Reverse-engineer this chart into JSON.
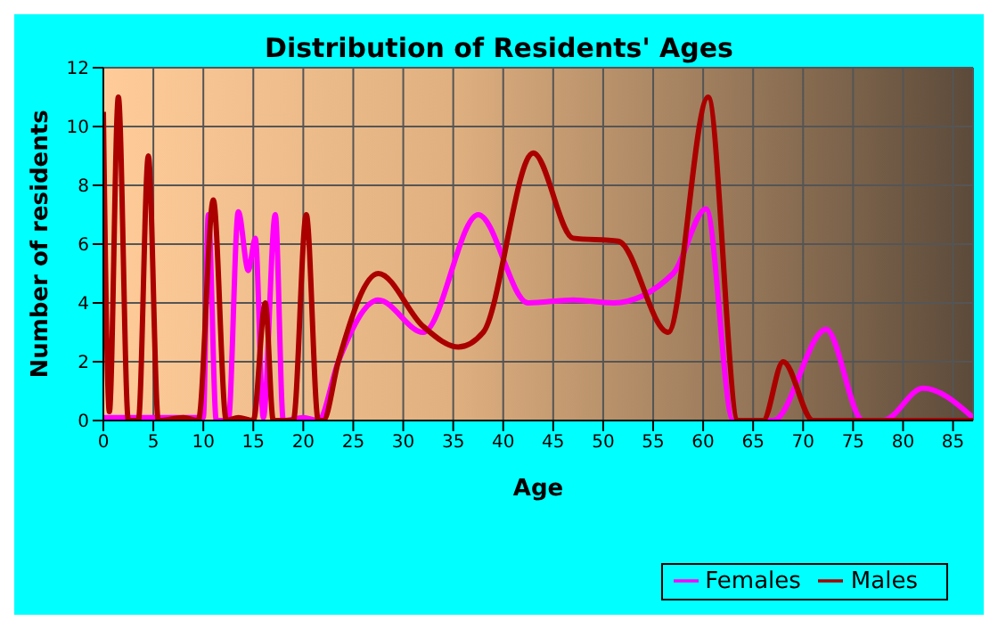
{
  "chart_data": {
    "type": "line",
    "title": "Distribution of Residents' Ages",
    "xlabel": "Age",
    "ylabel": "Number of residents",
    "xlim": [
      0,
      87
    ],
    "xticks": [
      0,
      5,
      10,
      15,
      20,
      25,
      30,
      35,
      40,
      45,
      50,
      55,
      60,
      65,
      70,
      75,
      80,
      85
    ],
    "ylim": [
      0,
      12
    ],
    "yticks": [
      0,
      2,
      4,
      6,
      8,
      10,
      12
    ],
    "grid": true,
    "legend": "bottom right",
    "marker": "none",
    "line_style": "solid",
    "series": [
      {
        "name": "Males",
        "color": "#aa0000",
        "x": [
          0,
          0.6,
          1.5,
          2.5,
          3.5,
          4.5,
          5.5,
          8,
          9.5,
          11,
          12.3,
          13.5,
          15,
          16.2,
          17,
          19,
          20.3,
          21.5,
          22,
          23.5,
          27.5,
          32,
          35.5,
          38,
          43,
          47,
          51.5,
          56.5,
          60.5,
          63.5,
          66,
          68,
          71,
          87
        ],
        "values": [
          10.5,
          0.3,
          11,
          0,
          0,
          9,
          0,
          0.1,
          0,
          7.5,
          0,
          0.1,
          0,
          4,
          0,
          0,
          7,
          0,
          0,
          2,
          5,
          3.2,
          2.5,
          3,
          9.1,
          6.2,
          6.1,
          3,
          11,
          0,
          0,
          2,
          0,
          0
        ]
      },
      {
        "name": "Females",
        "color": "#ff00ff",
        "x": [
          0,
          10,
          10.5,
          11.3,
          12.5,
          13.5,
          14.5,
          15.2,
          16,
          17.2,
          18,
          20,
          21.5,
          23.5,
          27.5,
          32,
          37.5,
          42.5,
          47,
          51,
          57,
          60.3,
          63,
          67,
          72.3,
          76,
          78,
          82,
          87
        ],
        "values": [
          0.1,
          0.1,
          7,
          0,
          0,
          7.1,
          5.1,
          6.2,
          0.1,
          7,
          0,
          0.1,
          0,
          2,
          4.1,
          3,
          7,
          4,
          4.1,
          4,
          5,
          7.2,
          0,
          0,
          3.1,
          0,
          0,
          1.1,
          0.1
        ]
      }
    ]
  }
}
